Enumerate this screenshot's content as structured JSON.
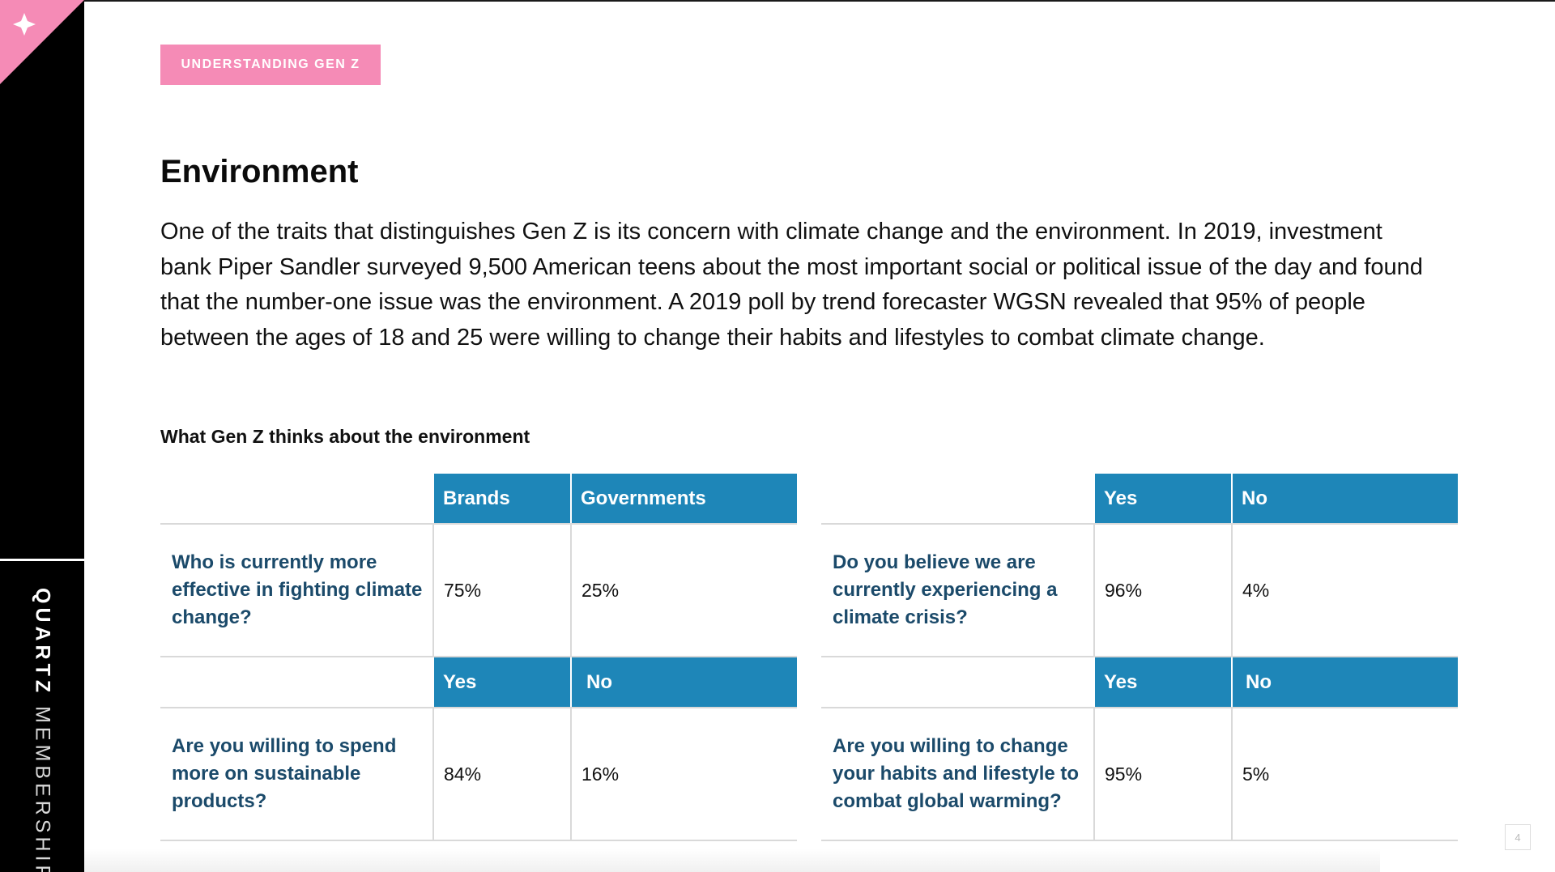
{
  "sidebar": {
    "brand_bold": "QUARTZ",
    "brand_regular": "MEMBERSHIP",
    "corner_color": "#f58bb6"
  },
  "tag": {
    "label": "UNDERSTANDING GEN Z"
  },
  "title": "Environment",
  "body": "One of the traits that distinguishes Gen Z is its concern with climate change and the environment. In 2019, investment bank Piper Sandler surveyed 9,500 American teens about the most important social or political issue of the day and found that the number-one issue was the environment. A 2019 poll by trend forecaster WGSN revealed that 95% of people between the ages of 18 and 25 were willing to change their habits and lifestyles to combat climate change.",
  "table_caption": "What Gen Z thinks about the environment",
  "tables": [
    {
      "col1": "Brands",
      "col2": "Governments",
      "question": "Who is currently more effective in fighting climate change?",
      "val1": "75%",
      "val2": "25%"
    },
    {
      "col1": "Yes",
      "col2": "No",
      "question": "Do you believe we are currently experiencing a climate crisis?",
      "val1": "96%",
      "val2": "4%"
    },
    {
      "col1": "Yes",
      "col2": "No",
      "question": "Are you willing to spend more on sustainable products?",
      "val1": "84%",
      "val2": "16%"
    },
    {
      "col1": "Yes",
      "col2": "No",
      "question": "Are you willing to change your habits and lifestyle to combat global warming?",
      "val1": "95%",
      "val2": "5%"
    }
  ],
  "page_number": "4",
  "colors": {
    "header_blue": "#1e86b8",
    "question_navy": "#1b4a6a",
    "tag_pink": "#f58bb6"
  }
}
